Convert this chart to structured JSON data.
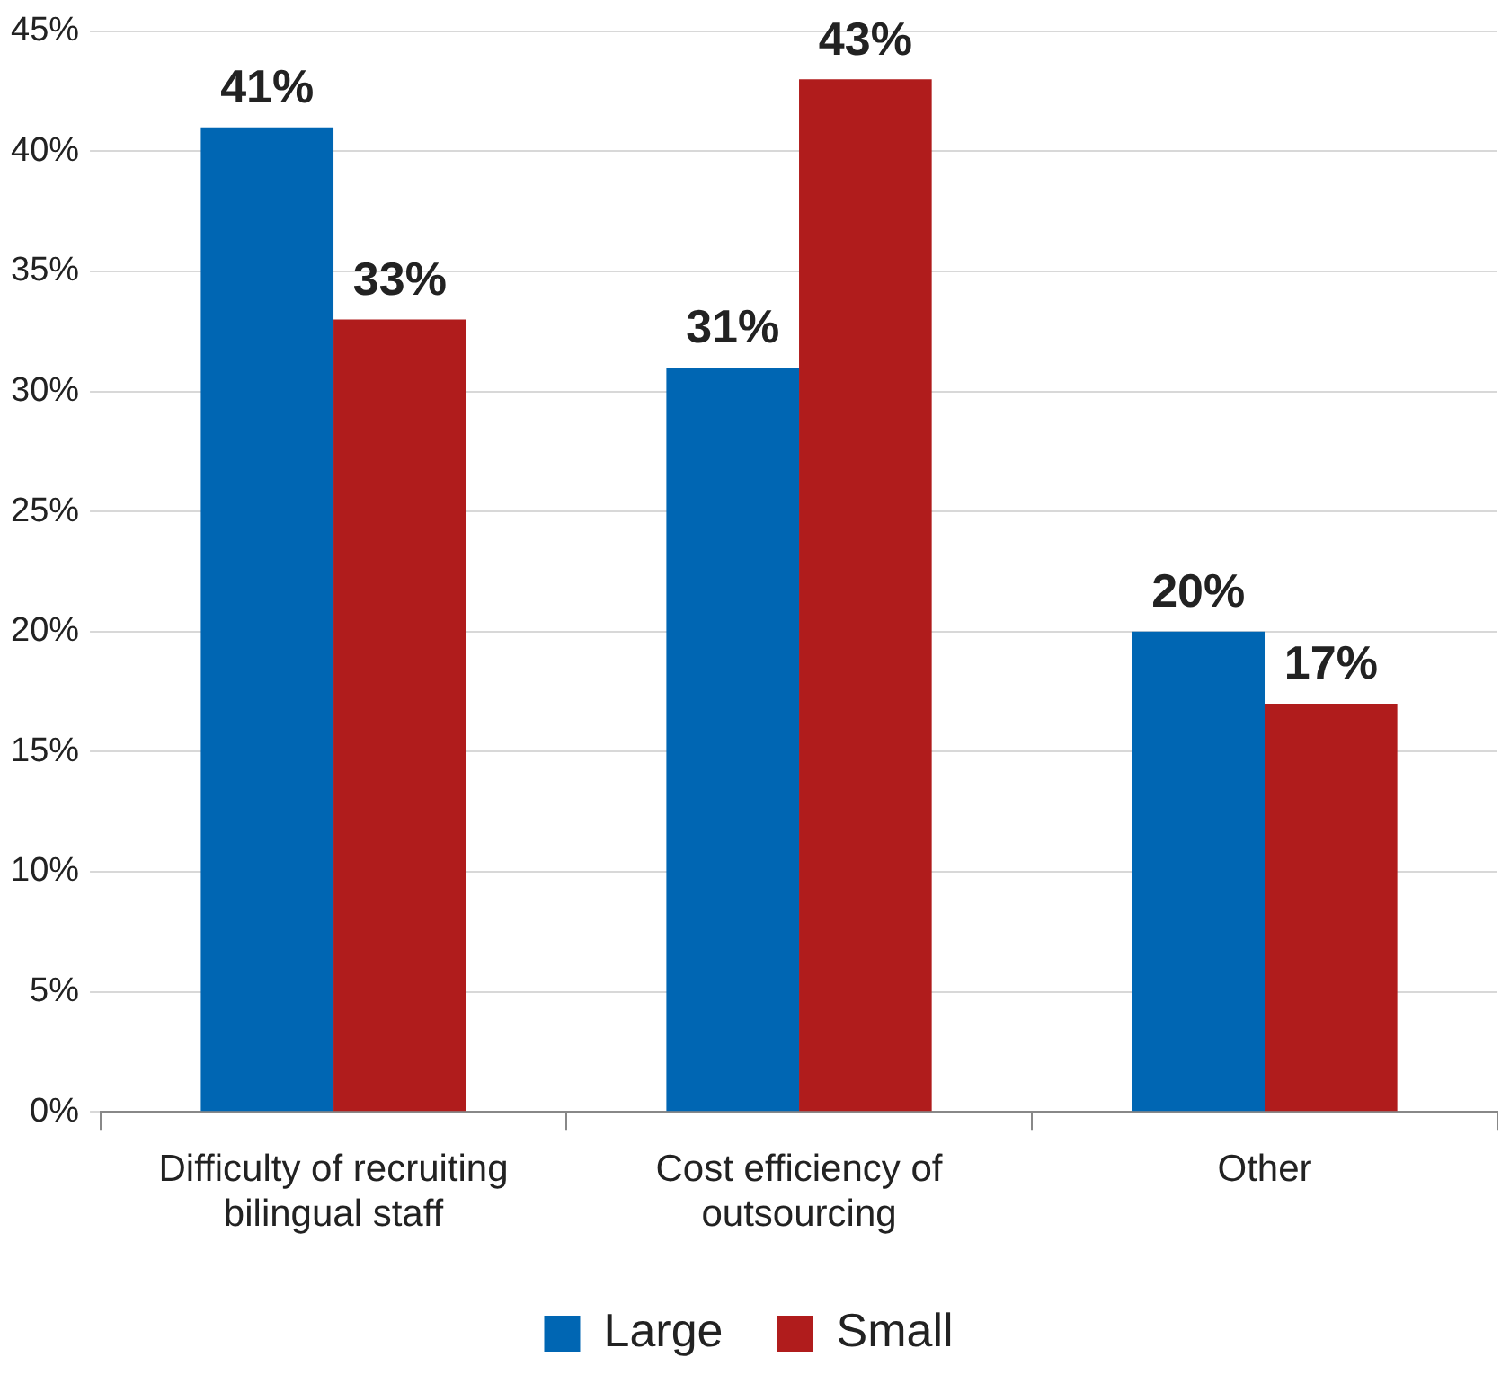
{
  "chart_data": {
    "type": "bar",
    "categories": [
      "Difficulty of recruiting bilingual staff",
      "Cost efficiency of outsourcing",
      "Other"
    ],
    "series": [
      {
        "name": "Large",
        "color": "#0066b3",
        "values": [
          41,
          31,
          20
        ],
        "value_labels": [
          "41%",
          "31%",
          "20%"
        ]
      },
      {
        "name": "Small",
        "color": "#b01c1c",
        "values": [
          33,
          43,
          17
        ],
        "value_labels": [
          "33%",
          "43%",
          "17%"
        ]
      }
    ],
    "ylim": [
      0,
      45
    ],
    "yticks": [
      {
        "value": 0,
        "label": "0%"
      },
      {
        "value": 5,
        "label": "5%"
      },
      {
        "value": 10,
        "label": "10%"
      },
      {
        "value": 15,
        "label": "15%"
      },
      {
        "value": 20,
        "label": "20%"
      },
      {
        "value": 25,
        "label": "25%"
      },
      {
        "value": 30,
        "label": "30%"
      },
      {
        "value": 35,
        "label": "35%"
      },
      {
        "value": 40,
        "label": "40%"
      },
      {
        "value": 45,
        "label": "45%"
      }
    ],
    "grid": "y",
    "legend": "bottom"
  }
}
